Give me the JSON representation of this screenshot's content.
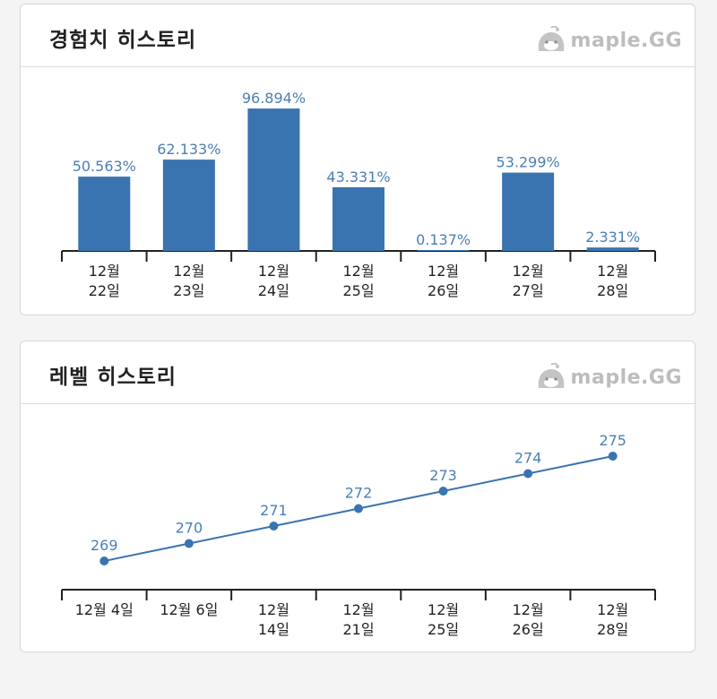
{
  "exp_card": {
    "title": "경험치 히스토리",
    "logo_text": "maple.GG",
    "chart_data": {
      "type": "bar",
      "title": "경험치 히스토리",
      "categories": [
        [
          "12월",
          "22일"
        ],
        [
          "12월",
          "23일"
        ],
        [
          "12월",
          "24일"
        ],
        [
          "12월",
          "25일"
        ],
        [
          "12월",
          "26일"
        ],
        [
          "12월",
          "27일"
        ],
        [
          "12월",
          "28일"
        ]
      ],
      "values": [
        50.563,
        62.133,
        96.894,
        43.331,
        0.137,
        53.299,
        2.331
      ],
      "value_labels": [
        "50.563%",
        "62.133%",
        "96.894%",
        "43.331%",
        "0.137%",
        "53.299%",
        "2.331%"
      ],
      "ylim": [
        0,
        100
      ],
      "grid": false,
      "bar_color": "#3a74b0",
      "label_color": "#4a7fb5"
    }
  },
  "level_card": {
    "title": "레벨 히스토리",
    "logo_text": "maple.GG",
    "chart_data": {
      "type": "line",
      "title": "레벨 히스토리",
      "categories": [
        [
          "12월 4일"
        ],
        [
          "12월 6일"
        ],
        [
          "12월",
          "14일"
        ],
        [
          "12월",
          "21일"
        ],
        [
          "12월",
          "25일"
        ],
        [
          "12월",
          "26일"
        ],
        [
          "12월",
          "28일"
        ]
      ],
      "values": [
        269,
        270,
        271,
        272,
        273,
        274,
        275
      ],
      "value_labels": [
        "269",
        "270",
        "271",
        "272",
        "273",
        "274",
        "275"
      ],
      "ylim": [
        269,
        275
      ],
      "grid": false,
      "line_color": "#3a74b0",
      "label_color": "#4a7fb5"
    }
  }
}
